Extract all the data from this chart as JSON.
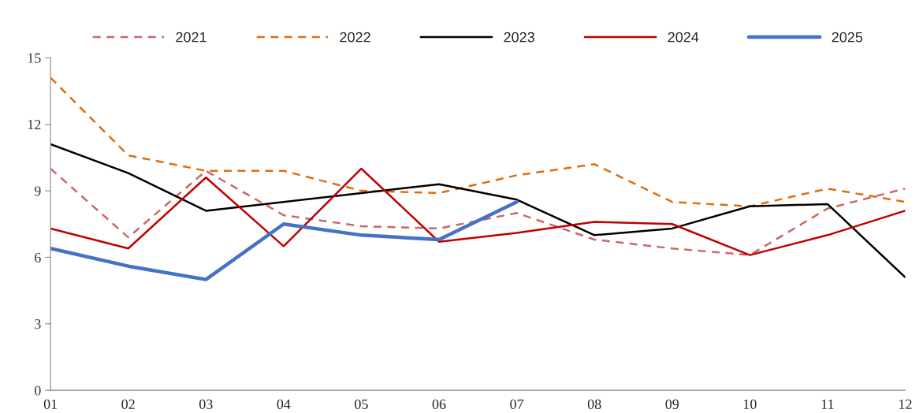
{
  "chart_data": {
    "type": "line",
    "categories": [
      "01",
      "02",
      "03",
      "04",
      "05",
      "06",
      "07",
      "08",
      "09",
      "10",
      "11",
      "12"
    ],
    "ylim": [
      0,
      15
    ],
    "yticks": [
      0,
      3,
      6,
      9,
      12,
      15
    ],
    "grid": false,
    "legend": "top",
    "marker": "none",
    "series": [
      {
        "name": "2021",
        "color": "#cc6666",
        "line_style": "dashed",
        "values": [
          10.0,
          6.9,
          9.9,
          7.9,
          7.4,
          7.3,
          8.0,
          6.8,
          6.4,
          6.1,
          8.2,
          9.1
        ]
      },
      {
        "name": "2022",
        "color": "#e36c0a",
        "line_style": "dashed",
        "values": [
          14.1,
          10.6,
          9.9,
          9.9,
          9.0,
          8.9,
          9.7,
          10.2,
          8.5,
          8.3,
          9.1,
          8.5
        ]
      },
      {
        "name": "2023",
        "color": "#000000",
        "line_style": "solid",
        "values": [
          11.1,
          9.8,
          8.1,
          8.5,
          8.9,
          9.3,
          8.6,
          7.0,
          7.3,
          8.3,
          8.4,
          5.1
        ]
      },
      {
        "name": "2024",
        "color": "#c00000",
        "line_style": "solid",
        "values": [
          7.3,
          6.4,
          9.6,
          6.5,
          10.0,
          6.7,
          7.1,
          7.6,
          7.5,
          6.1,
          7.0,
          8.1
        ]
      },
      {
        "name": "2025",
        "color": "#4472c4",
        "line_style": "solid",
        "values": [
          6.4,
          5.6,
          5.0,
          7.5,
          7.0,
          6.8,
          8.5,
          null,
          null,
          null,
          null,
          null
        ]
      }
    ]
  }
}
